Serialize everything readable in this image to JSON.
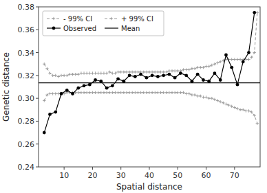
{
  "chart_data": {
    "type": "line",
    "xlabel": "Spatial distance",
    "ylabel": "Genetic distance",
    "xlim": [
      1,
      79
    ],
    "ylim": [
      0.24,
      0.38
    ],
    "xticks": [
      10,
      20,
      30,
      40,
      50,
      60,
      70
    ],
    "yticks": [
      0.24,
      0.26,
      0.28,
      {
        "value": 0.3,
        "label": "0.30"
      },
      0.32,
      0.34,
      0.36,
      0.38
    ],
    "grid": false,
    "legend": "upper-left",
    "series": [
      {
        "name": "- 99% CI",
        "color": "#999999",
        "line_style": "dashed",
        "marker": "plus",
        "x": [
          3,
          4,
          5,
          6,
          7,
          8,
          9,
          10,
          11,
          12,
          13,
          14,
          15,
          16,
          17,
          18,
          19,
          20,
          21,
          22,
          23,
          24,
          25,
          26,
          27,
          28,
          29,
          30,
          31,
          32,
          33,
          34,
          35,
          36,
          37,
          38,
          39,
          40,
          41,
          42,
          43,
          44,
          45,
          46,
          47,
          48,
          49,
          50,
          51,
          52,
          53,
          54,
          55,
          56,
          57,
          58,
          59,
          60,
          61,
          62,
          63,
          64,
          65,
          66,
          67,
          68,
          69,
          70,
          71,
          72,
          73,
          74,
          75,
          76,
          77,
          78
        ],
        "values": [
          0.298,
          0.303,
          0.304,
          0.304,
          0.304,
          0.304,
          0.304,
          0.304,
          0.305,
          0.305,
          0.305,
          0.305,
          0.305,
          0.305,
          0.305,
          0.305,
          0.305,
          0.305,
          0.305,
          0.305,
          0.305,
          0.305,
          0.305,
          0.305,
          0.305,
          0.305,
          0.305,
          0.305,
          0.305,
          0.305,
          0.305,
          0.305,
          0.305,
          0.305,
          0.305,
          0.305,
          0.305,
          0.305,
          0.305,
          0.305,
          0.305,
          0.305,
          0.305,
          0.305,
          0.305,
          0.305,
          0.305,
          0.305,
          0.305,
          0.305,
          0.304,
          0.304,
          0.303,
          0.303,
          0.302,
          0.302,
          0.301,
          0.301,
          0.3,
          0.3,
          0.299,
          0.298,
          0.297,
          0.296,
          0.295,
          0.294,
          0.293,
          0.292,
          0.291,
          0.29,
          0.29,
          0.289,
          0.289,
          0.288,
          0.285,
          0.278
        ]
      },
      {
        "name": "+ 99% CI",
        "color": "#999999",
        "line_style": "dashed",
        "marker": "plus",
        "x": [
          3,
          4,
          5,
          6,
          7,
          8,
          9,
          10,
          11,
          12,
          13,
          14,
          15,
          16,
          17,
          18,
          19,
          20,
          21,
          22,
          23,
          24,
          25,
          26,
          27,
          28,
          29,
          30,
          31,
          32,
          33,
          34,
          35,
          36,
          37,
          38,
          39,
          40,
          41,
          42,
          43,
          44,
          45,
          46,
          47,
          48,
          49,
          50,
          51,
          52,
          53,
          54,
          55,
          56,
          57,
          58,
          59,
          60,
          61,
          62,
          63,
          64,
          65,
          66,
          67,
          68,
          69,
          70,
          71,
          72,
          73,
          74,
          75,
          76,
          77,
          78
        ],
        "values": [
          0.33,
          0.326,
          0.322,
          0.32,
          0.32,
          0.319,
          0.32,
          0.32,
          0.32,
          0.321,
          0.321,
          0.321,
          0.321,
          0.322,
          0.322,
          0.322,
          0.322,
          0.322,
          0.322,
          0.322,
          0.322,
          0.322,
          0.322,
          0.323,
          0.322,
          0.322,
          0.323,
          0.323,
          0.323,
          0.323,
          0.323,
          0.323,
          0.323,
          0.323,
          0.323,
          0.323,
          0.323,
          0.323,
          0.323,
          0.323,
          0.323,
          0.323,
          0.323,
          0.323,
          0.324,
          0.324,
          0.324,
          0.324,
          0.324,
          0.325,
          0.325,
          0.325,
          0.326,
          0.326,
          0.327,
          0.327,
          0.327,
          0.328,
          0.328,
          0.329,
          0.33,
          0.331,
          0.332,
          0.333,
          0.334,
          0.334,
          0.334,
          0.334,
          0.334,
          0.334,
          0.334,
          0.334,
          0.334,
          0.336,
          0.34,
          0.375
        ]
      },
      {
        "name": "Observed",
        "color": "#000000",
        "line_style": "solid",
        "marker": "circle",
        "x": [
          3,
          5,
          7,
          9,
          11,
          13,
          15,
          17,
          19,
          21,
          23,
          25,
          27,
          29,
          31,
          33,
          35,
          37,
          39,
          41,
          43,
          45,
          47,
          49,
          51,
          53,
          55,
          57,
          59,
          61,
          63,
          65,
          67,
          69,
          71,
          73,
          75,
          77
        ],
        "values": [
          0.27,
          0.286,
          0.288,
          0.304,
          0.307,
          0.304,
          0.309,
          0.311,
          0.312,
          0.316,
          0.315,
          0.309,
          0.311,
          0.317,
          0.315,
          0.32,
          0.319,
          0.321,
          0.318,
          0.32,
          0.319,
          0.32,
          0.321,
          0.318,
          0.322,
          0.32,
          0.315,
          0.321,
          0.316,
          0.315,
          0.322,
          0.316,
          0.338,
          0.327,
          0.312,
          0.332,
          0.34,
          0.375
        ]
      },
      {
        "name": "Mean",
        "type": "hline",
        "color": "#000000",
        "line_style": "solid",
        "values": [
          0.3135
        ]
      }
    ]
  }
}
